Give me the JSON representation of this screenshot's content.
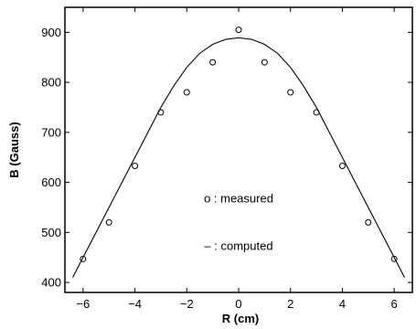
{
  "chart_data": {
    "type": "scatter",
    "title": "",
    "xlabel": "R (cm)",
    "ylabel": "B (Gauss)",
    "xlim": [
      -6.7,
      6.7
    ],
    "ylim": [
      380,
      950
    ],
    "x_ticks": [
      -6,
      -4,
      -2,
      0,
      2,
      4,
      6
    ],
    "y_ticks": [
      400,
      500,
      600,
      700,
      800,
      900
    ],
    "grid": false,
    "series": [
      {
        "name": "measured",
        "style": "open-circle",
        "x": [
          -6,
          -5,
          -4,
          -3,
          -2,
          -1,
          0,
          1,
          2,
          3,
          4,
          5,
          6
        ],
        "y": [
          447,
          520,
          633,
          740,
          780,
          840,
          905,
          840,
          780,
          740,
          633,
          520,
          447
        ]
      },
      {
        "name": "computed",
        "style": "line",
        "x": [
          -6.4,
          -6,
          -5.5,
          -5,
          -4.5,
          -4,
          -3.5,
          -3,
          -2.5,
          -2,
          -1.5,
          -1,
          -0.5,
          0,
          0.5,
          1,
          1.5,
          2,
          2.5,
          3,
          3.5,
          4,
          4.5,
          5,
          5.5,
          6,
          6.4
        ],
        "y": [
          410,
          450,
          500,
          550,
          600,
          650,
          700,
          750,
          793,
          830,
          858,
          876,
          886,
          889,
          886,
          876,
          858,
          830,
          793,
          750,
          700,
          650,
          600,
          550,
          500,
          450,
          410
        ]
      }
    ],
    "annotations": [
      {
        "text": "o : measured",
        "x": 0,
        "y": 560
      },
      {
        "text": "– : computed",
        "x": 0,
        "y": 465
      }
    ]
  },
  "colors": {
    "ink": "#000000",
    "background": "#ffffff"
  }
}
